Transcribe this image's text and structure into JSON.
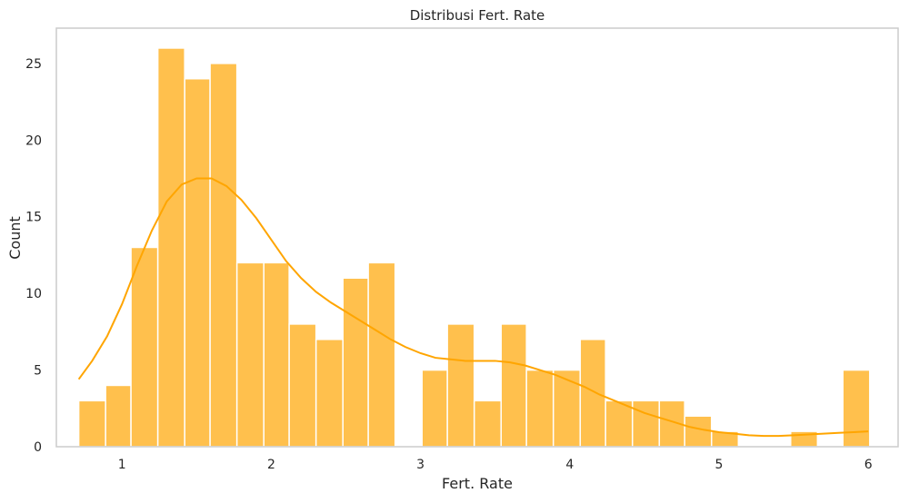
{
  "chart_data": {
    "type": "bar",
    "subtype": "histogram-with-kde",
    "title": "Distribusi Fert. Rate",
    "xlabel": "Fert. Rate",
    "ylabel": "Count",
    "xlim": [
      0.56,
      6.2
    ],
    "ylim": [
      0,
      27.3
    ],
    "xticks": [
      1,
      2,
      3,
      4,
      5,
      6
    ],
    "yticks": [
      0,
      5,
      10,
      15,
      20,
      25
    ],
    "grid": false,
    "bin_start": 0.71,
    "bin_width": 0.1765,
    "bins": [
      {
        "x0": 0.71,
        "x1": 0.89,
        "count": 3
      },
      {
        "x0": 0.89,
        "x1": 1.06,
        "count": 4
      },
      {
        "x0": 1.06,
        "x1": 1.24,
        "count": 13
      },
      {
        "x0": 1.24,
        "x1": 1.42,
        "count": 26
      },
      {
        "x0": 1.42,
        "x1": 1.59,
        "count": 24
      },
      {
        "x0": 1.59,
        "x1": 1.77,
        "count": 25
      },
      {
        "x0": 1.77,
        "x1": 1.95,
        "count": 12
      },
      {
        "x0": 1.95,
        "x1": 2.12,
        "count": 12
      },
      {
        "x0": 2.12,
        "x1": 2.3,
        "count": 8
      },
      {
        "x0": 2.3,
        "x1": 2.48,
        "count": 7
      },
      {
        "x0": 2.48,
        "x1": 2.65,
        "count": 11
      },
      {
        "x0": 2.65,
        "x1": 2.83,
        "count": 12
      },
      {
        "x0": 2.83,
        "x1": 3.01,
        "count": 0
      },
      {
        "x0": 3.01,
        "x1": 3.18,
        "count": 5
      },
      {
        "x0": 3.18,
        "x1": 3.36,
        "count": 8
      },
      {
        "x0": 3.36,
        "x1": 3.54,
        "count": 3
      },
      {
        "x0": 3.54,
        "x1": 3.71,
        "count": 8
      },
      {
        "x0": 3.71,
        "x1": 3.89,
        "count": 5
      },
      {
        "x0": 3.89,
        "x1": 4.07,
        "count": 5
      },
      {
        "x0": 4.07,
        "x1": 4.24,
        "count": 7
      },
      {
        "x0": 4.24,
        "x1": 4.42,
        "count": 3
      },
      {
        "x0": 4.42,
        "x1": 4.6,
        "count": 3
      },
      {
        "x0": 4.6,
        "x1": 4.77,
        "count": 3
      },
      {
        "x0": 4.77,
        "x1": 4.95,
        "count": 2
      },
      {
        "x0": 4.95,
        "x1": 5.13,
        "count": 1
      },
      {
        "x0": 5.13,
        "x1": 5.3,
        "count": 0
      },
      {
        "x0": 5.3,
        "x1": 5.48,
        "count": 0
      },
      {
        "x0": 5.48,
        "x1": 5.66,
        "count": 1
      },
      {
        "x0": 5.66,
        "x1": 5.83,
        "count": 0
      },
      {
        "x0": 5.83,
        "x1": 6.01,
        "count": 5
      }
    ],
    "kde": {
      "x": [
        0.71,
        0.8,
        0.9,
        1.0,
        1.1,
        1.2,
        1.3,
        1.4,
        1.5,
        1.6,
        1.7,
        1.8,
        1.9,
        2.0,
        2.1,
        2.2,
        2.3,
        2.4,
        2.5,
        2.6,
        2.7,
        2.8,
        2.9,
        3.0,
        3.1,
        3.2,
        3.3,
        3.4,
        3.5,
        3.6,
        3.7,
        3.8,
        3.9,
        4.0,
        4.1,
        4.2,
        4.3,
        4.4,
        4.5,
        4.6,
        4.7,
        4.8,
        4.9,
        5.0,
        5.1,
        5.2,
        5.3,
        5.4,
        5.5,
        5.6,
        5.7,
        5.8,
        5.9,
        6.0
      ],
      "y": [
        4.4,
        5.6,
        7.2,
        9.3,
        11.8,
        14.1,
        16.0,
        17.1,
        17.5,
        17.5,
        17.0,
        16.1,
        14.9,
        13.5,
        12.1,
        11.0,
        10.1,
        9.4,
        8.8,
        8.2,
        7.6,
        7.0,
        6.5,
        6.1,
        5.8,
        5.7,
        5.6,
        5.6,
        5.6,
        5.5,
        5.3,
        5.0,
        4.7,
        4.3,
        3.9,
        3.4,
        3.0,
        2.6,
        2.2,
        1.9,
        1.6,
        1.3,
        1.1,
        0.95,
        0.85,
        0.75,
        0.7,
        0.7,
        0.75,
        0.8,
        0.85,
        0.9,
        0.95,
        1.0
      ]
    },
    "colors": {
      "bar_fill": "#ffc04d",
      "bar_edge": "#ffffff",
      "kde_line": "#ffa500",
      "frame": "#cccccc",
      "text": "#262626"
    }
  }
}
